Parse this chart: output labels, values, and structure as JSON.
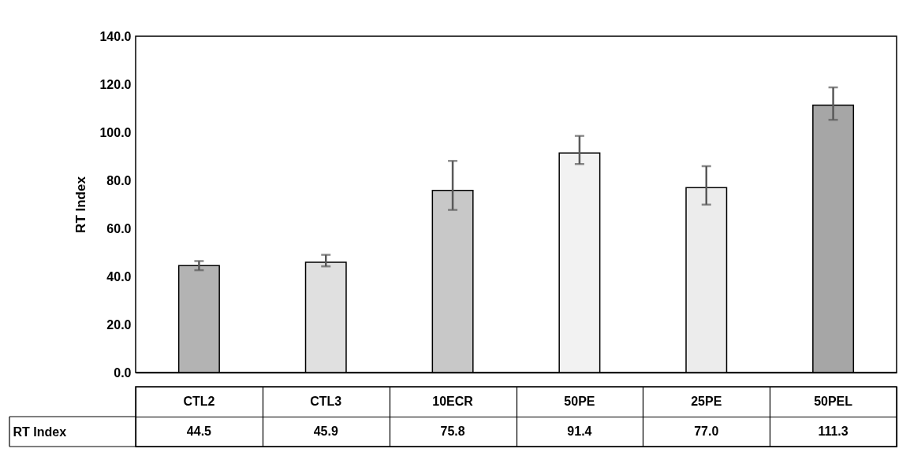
{
  "chart_data": {
    "type": "bar",
    "ylabel": "RT Index",
    "categories": [
      "CTL2",
      "CTL3",
      "10ECR",
      "50PE",
      "25PE",
      "50PEL"
    ],
    "values": [
      44.5,
      45.9,
      75.8,
      91.4,
      77.0,
      111.3
    ],
    "value_labels": [
      "44.5",
      "45.9",
      "75.8",
      "91.4",
      "77.0",
      "111.3"
    ],
    "colors": [
      "#b3b3b3",
      "#e0e0e0",
      "#c8c8c8",
      "#f2f2f2",
      "#ececec",
      "#a6a6a6"
    ],
    "errors": [
      [
        42.6,
        46.4
      ],
      [
        44.2,
        49.0
      ],
      [
        67.7,
        88.1
      ],
      [
        86.8,
        98.5
      ],
      [
        69.9,
        85.9
      ],
      [
        105.2,
        118.7
      ]
    ],
    "ylim": [
      0,
      140
    ],
    "yticks": [
      {
        "value": 0,
        "label": "0.0"
      },
      {
        "value": 20,
        "label": "20.0"
      },
      {
        "value": 40,
        "label": "40.0"
      },
      {
        "value": 60,
        "label": "60.0"
      },
      {
        "value": 80,
        "label": "80.0"
      },
      {
        "value": 100,
        "label": "100.0"
      },
      {
        "value": 120,
        "label": "120.0"
      },
      {
        "value": 140,
        "label": "140.0"
      }
    ],
    "grid": false
  }
}
